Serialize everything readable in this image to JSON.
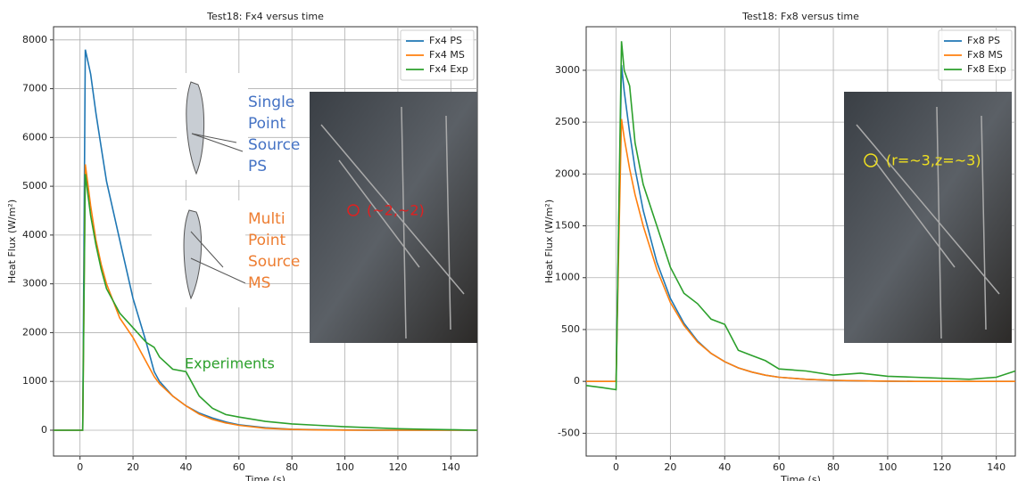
{
  "chart_data": [
    {
      "type": "line",
      "title": "Test18: Fx4 versus time",
      "xlabel": "Time (s)",
      "ylabel": "Heat Flux (W/m²)",
      "x": [
        -10,
        -5,
        0,
        1,
        2,
        4,
        6,
        8,
        10,
        15,
        20,
        25,
        28,
        30,
        35,
        40,
        45,
        50,
        55,
        60,
        70,
        80,
        90,
        100,
        110,
        120,
        130,
        140,
        150
      ],
      "series": [
        {
          "name": "Fx4 PS",
          "color": "#1f77b4",
          "values": [
            0,
            0,
            0,
            0,
            7800,
            7300,
            6500,
            5800,
            5100,
            3900,
            2700,
            1800,
            1200,
            1000,
            700,
            500,
            350,
            250,
            170,
            110,
            50,
            20,
            10,
            5,
            2,
            0,
            0,
            0,
            0
          ]
        },
        {
          "name": "Fx4 MS",
          "color": "#ff7f0e",
          "values": [
            0,
            0,
            0,
            0,
            5450,
            4600,
            3900,
            3400,
            3000,
            2300,
            1900,
            1400,
            1100,
            950,
            700,
            500,
            330,
            220,
            150,
            100,
            40,
            15,
            5,
            2,
            0,
            0,
            0,
            0,
            0
          ]
        },
        {
          "name": "Fx4 Exp",
          "color": "#2ca02c",
          "values": [
            0,
            0,
            0,
            0,
            5250,
            4400,
            3800,
            3300,
            2900,
            2400,
            2100,
            1800,
            1700,
            1500,
            1250,
            1200,
            700,
            450,
            320,
            270,
            180,
            130,
            100,
            70,
            50,
            30,
            20,
            10,
            0
          ]
        }
      ],
      "xlim": [
        -10,
        150
      ],
      "ylim": [
        -530,
        8270
      ],
      "xticks": [
        0,
        20,
        40,
        60,
        80,
        100,
        120,
        140
      ],
      "yticks": [
        0,
        1000,
        2000,
        3000,
        4000,
        5000,
        6000,
        7000,
        8000
      ],
      "grid": true,
      "legend": "upper right",
      "annotations": [
        {
          "lines": [
            "Single",
            "Point",
            "Source",
            "PS"
          ],
          "color": "#4472c4"
        },
        {
          "lines": [
            "Multi",
            "Point",
            "Source",
            "MS"
          ],
          "color": "#ed7d31"
        },
        {
          "lines": [
            "Experiments"
          ],
          "color": "#2ca02c"
        },
        {
          "lines": [
            "(~2,~2)"
          ],
          "color": "#e02020"
        }
      ]
    },
    {
      "type": "line",
      "title": "Test18: Fx8 versus time",
      "xlabel": "Time (s)",
      "ylabel": "Heat Flux (W/m²)",
      "x": [
        -11,
        -5,
        0,
        1,
        2,
        3,
        5,
        7,
        10,
        15,
        20,
        25,
        30,
        35,
        40,
        45,
        50,
        55,
        60,
        70,
        80,
        90,
        100,
        110,
        120,
        130,
        140,
        147
      ],
      "series": [
        {
          "name": "Fx8 PS",
          "color": "#1f77b4",
          "values": [
            0,
            0,
            0,
            1500,
            3050,
            2800,
            2400,
            2050,
            1650,
            1150,
            800,
            560,
            390,
            270,
            190,
            130,
            90,
            60,
            40,
            20,
            10,
            5,
            2,
            0,
            0,
            0,
            0,
            0
          ]
        },
        {
          "name": "Fx8 MS",
          "color": "#ff7f0e",
          "values": [
            0,
            0,
            0,
            1300,
            2530,
            2350,
            2050,
            1800,
            1500,
            1080,
            760,
            540,
            380,
            270,
            190,
            130,
            90,
            60,
            40,
            20,
            10,
            5,
            2,
            0,
            0,
            0,
            0,
            0
          ]
        },
        {
          "name": "Fx8 Exp",
          "color": "#2ca02c",
          "values": [
            -40,
            -60,
            -80,
            1600,
            3280,
            3000,
            2850,
            2300,
            1900,
            1500,
            1100,
            850,
            750,
            600,
            550,
            300,
            250,
            200,
            120,
            100,
            60,
            80,
            50,
            40,
            30,
            20,
            40,
            100
          ]
        }
      ],
      "xlim": [
        -11,
        147
      ],
      "ylim": [
        -720,
        3420
      ],
      "xticks": [
        0,
        20,
        40,
        60,
        80,
        100,
        120,
        140
      ],
      "yticks": [
        -500,
        0,
        500,
        1000,
        1500,
        2000,
        2500,
        3000
      ],
      "grid": true,
      "legend": "upper right",
      "annotations": [
        {
          "lines": [
            "(r=~3,z=~3)"
          ],
          "color": "#f0e020"
        }
      ]
    }
  ]
}
